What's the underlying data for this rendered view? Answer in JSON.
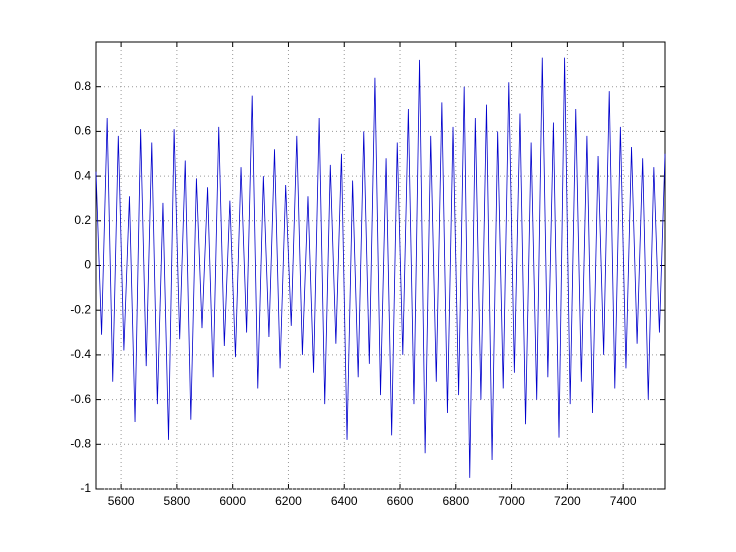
{
  "chart_data": {
    "type": "line",
    "x": [
      5510,
      5530,
      5550,
      5570,
      5590,
      5610,
      5630,
      5650,
      5670,
      5690,
      5710,
      5730,
      5750,
      5770,
      5790,
      5810,
      5830,
      5850,
      5870,
      5890,
      5910,
      5930,
      5950,
      5970,
      5990,
      6010,
      6030,
      6050,
      6070,
      6090,
      6110,
      6130,
      6150,
      6170,
      6190,
      6210,
      6230,
      6250,
      6270,
      6290,
      6310,
      6330,
      6350,
      6370,
      6390,
      6410,
      6430,
      6450,
      6470,
      6490,
      6510,
      6530,
      6550,
      6570,
      6590,
      6610,
      6630,
      6650,
      6670,
      6690,
      6710,
      6730,
      6750,
      6770,
      6790,
      6810,
      6830,
      6850,
      6870,
      6890,
      6910,
      6930,
      6950,
      6970,
      6990,
      7010,
      7030,
      7050,
      7070,
      7090,
      7110,
      7130,
      7150,
      7170,
      7190,
      7210,
      7230,
      7250,
      7270,
      7290,
      7310,
      7330,
      7350,
      7370,
      7390,
      7410,
      7430,
      7450,
      7470,
      7490,
      7510,
      7530,
      7550
    ],
    "series": [
      {
        "color": "#0000cc",
        "values": [
          0.42,
          -0.31,
          0.66,
          -0.52,
          0.58,
          -0.38,
          0.31,
          -0.7,
          0.61,
          -0.45,
          0.55,
          -0.62,
          0.28,
          -0.78,
          0.61,
          -0.33,
          0.47,
          -0.69,
          0.39,
          -0.28,
          0.35,
          -0.5,
          0.62,
          -0.36,
          0.29,
          -0.41,
          0.44,
          -0.3,
          0.76,
          -0.55,
          0.4,
          -0.32,
          0.52,
          -0.46,
          0.36,
          -0.27,
          0.58,
          -0.4,
          0.31,
          -0.48,
          0.66,
          -0.62,
          0.45,
          -0.35,
          0.5,
          -0.78,
          0.38,
          -0.5,
          0.6,
          -0.44,
          0.84,
          -0.58,
          0.48,
          -0.76,
          0.55,
          -0.4,
          0.7,
          -0.62,
          0.92,
          -0.84,
          0.58,
          -0.52,
          0.73,
          -0.66,
          0.62,
          -0.58,
          0.8,
          -0.95,
          0.66,
          -0.6,
          0.72,
          -0.87,
          0.6,
          -0.55,
          0.82,
          -0.48,
          0.68,
          -0.71,
          0.55,
          -0.6,
          0.93,
          -0.5,
          0.64,
          -0.77,
          0.93,
          -0.62,
          0.7,
          -0.52,
          0.58,
          -0.66,
          0.49,
          -0.4,
          0.78,
          -0.55,
          0.62,
          -0.46,
          0.53,
          -0.35,
          0.48,
          -0.6,
          0.44,
          -0.3,
          0.5
        ]
      }
    ],
    "xlim": [
      5510,
      7550
    ],
    "ylim": [
      -1,
      1
    ],
    "xticks": [
      5600,
      5800,
      6000,
      6200,
      6400,
      6600,
      6800,
      7000,
      7200,
      7400
    ],
    "yticks": [
      -1,
      -0.8,
      -0.6,
      -0.4,
      -0.2,
      0,
      0.2,
      0.4,
      0.6,
      0.8
    ],
    "grid": true
  }
}
